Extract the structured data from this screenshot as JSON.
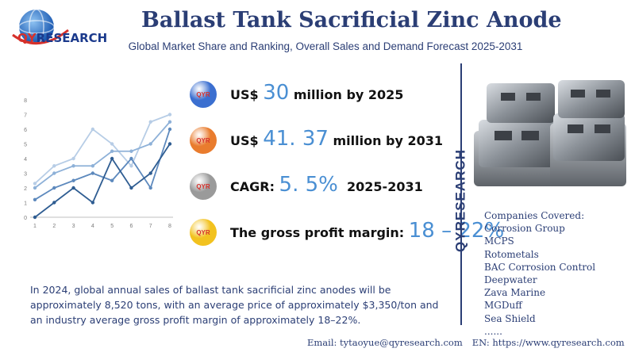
{
  "header": {
    "title": "Ballast Tank Sacrificial Zinc Anode",
    "subtitle": "Global Market Share and Ranking, Overall Sales and Demand Forecast 2025-2031"
  },
  "brand": {
    "logo_q": "Q",
    "logo_y": "Y",
    "logo_rest": "RESEARCH",
    "vertical": "QYRESEARCH",
    "icon_label": "QYR"
  },
  "stats": [
    {
      "prefix": "US$ ",
      "value": "30",
      "suffix": " million by 2025",
      "icon_color": "#3b6fd0"
    },
    {
      "prefix": "US$ ",
      "value": "41. 37",
      "suffix": " million by 2031",
      "icon_color": "#e97c2e"
    },
    {
      "prefix": "CAGR: ",
      "value": "5. 5%",
      "suffix": "  2025-2031",
      "icon_color": "#9a9a9a"
    },
    {
      "prefix": "The gross profit margin: ",
      "value": "18 – 22%",
      "suffix": "",
      "icon_color": "#f2c21f"
    }
  ],
  "companies": {
    "heading": "Companies Covered:",
    "items": [
      "Corrosion Group",
      "MCPS",
      "Rotometals",
      "BAC Corrosion Control",
      "Deepwater",
      "Zava Marine",
      "MGDuff",
      "Sea Shield",
      "......"
    ]
  },
  "summary": "In 2024, global annual sales of ballast tank sacrificial zinc anodes will be approximately 8,520 tons, with an average price of approximately $3,350/ton and an industry average gross profit margin of approximately 18–22%.",
  "footer": {
    "email": "Email: tytaoyue@qyresearch.com",
    "website": "EN: https://www.qyresearch.com"
  },
  "chart_data": {
    "type": "line",
    "x": [
      1,
      2,
      3,
      4,
      5,
      6,
      7,
      8
    ],
    "ylim": [
      0,
      8
    ],
    "yticks": [
      0,
      1,
      2,
      3,
      4,
      5,
      6,
      7,
      8
    ],
    "grid": false,
    "series": [
      {
        "values": [
          2.3,
          3.5,
          4.0,
          6.0,
          5.0,
          3.5,
          6.5,
          7.0
        ],
        "color": "#b7cde6"
      },
      {
        "values": [
          2.0,
          3.0,
          3.5,
          3.5,
          4.5,
          4.5,
          5.0,
          6.5
        ],
        "color": "#8eb1d8"
      },
      {
        "values": [
          1.2,
          2.0,
          2.5,
          3.0,
          2.5,
          4.0,
          2.0,
          6.0
        ],
        "color": "#5d89bd"
      },
      {
        "values": [
          0.0,
          1.0,
          2.0,
          1.0,
          4.0,
          2.0,
          3.0,
          5.0
        ],
        "color": "#2f5d92"
      }
    ]
  }
}
